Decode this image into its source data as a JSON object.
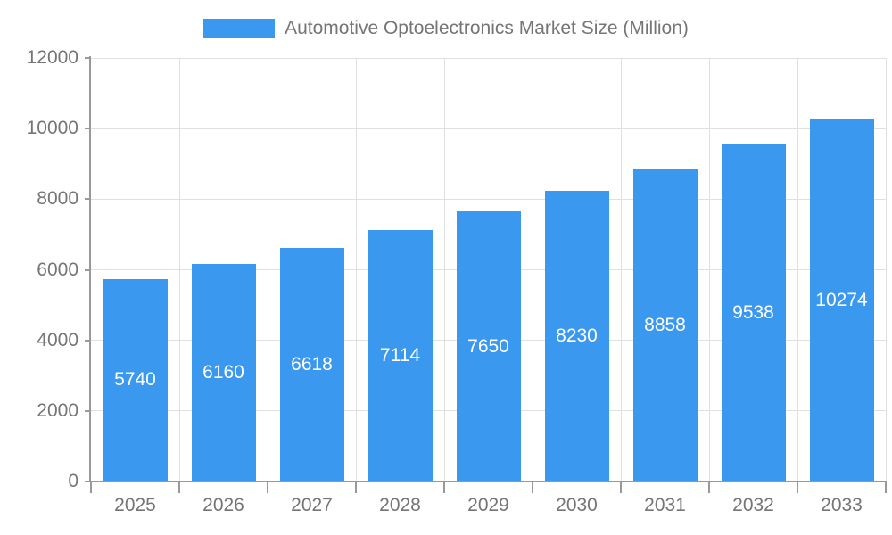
{
  "chart_data": {
    "type": "bar",
    "legend": "Automotive Optoelectronics Market Size (Million)",
    "legend_position": "top-center",
    "categories": [
      "2025",
      "2026",
      "2027",
      "2028",
      "2029",
      "2030",
      "2031",
      "2032",
      "2033"
    ],
    "values": [
      5740,
      6160,
      6618,
      7114,
      7650,
      8230,
      8858,
      9538,
      10274
    ],
    "series_name": "Automotive Optoelectronics Market Size (Million)",
    "xlabel": "",
    "ylabel": "",
    "ylim": [
      0,
      12000
    ],
    "y_ticks": [
      0,
      2000,
      4000,
      6000,
      8000,
      10000,
      12000
    ],
    "grid": true,
    "value_labels_position": "inside-center",
    "colors": {
      "bar": "#3a99ee",
      "value_label": "#ffffff",
      "axis_text": "#757575",
      "axis_line": "#999999",
      "gridline": "#e0e0e0",
      "background": "#ffffff"
    }
  }
}
